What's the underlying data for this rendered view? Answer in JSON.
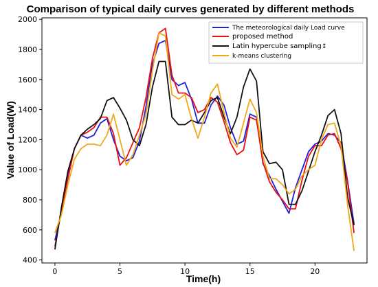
{
  "chart_data": {
    "type": "line",
    "title": "Comparison of typical daily curves generated by different methods",
    "xlabel": "Time(h)",
    "ylabel": "Value of Load(W)",
    "xlim": [
      -1,
      24
    ],
    "ylim": [
      380,
      2010
    ],
    "xticks": [
      0,
      5,
      10,
      15,
      20
    ],
    "yticks": [
      400,
      600,
      800,
      1000,
      1200,
      1400,
      1600,
      1800,
      2000
    ],
    "grid": false,
    "legend_position": "top-right",
    "x": [
      0,
      0.5,
      1,
      1.5,
      2,
      2.5,
      3,
      3.5,
      4,
      4.5,
      5,
      5.5,
      6,
      6.5,
      7,
      7.5,
      8,
      8.5,
      9,
      9.5,
      10,
      10.5,
      11,
      11.5,
      12,
      12.5,
      13,
      13.5,
      14,
      14.5,
      15,
      15.5,
      16,
      16.5,
      17,
      17.5,
      18,
      18.5,
      19,
      19.5,
      20,
      20.5,
      21,
      21.5,
      22,
      22.5,
      23
    ],
    "series": [
      {
        "name": "The meteorological daily Load curve",
        "color": "#1f1fe0",
        "values": [
          530,
          720,
          960,
          1140,
          1230,
          1210,
          1230,
          1310,
          1340,
          1200,
          1090,
          1060,
          1080,
          1190,
          1420,
          1700,
          1840,
          1860,
          1600,
          1560,
          1580,
          1470,
          1310,
          1310,
          1430,
          1490,
          1430,
          1280,
          1170,
          1190,
          1370,
          1350,
          1040,
          960,
          870,
          790,
          710,
          880,
          1000,
          1120,
          1170,
          1190,
          1240,
          1230,
          1180,
          930,
          640
        ]
      },
      {
        "name": "proposed method",
        "color": "#e81010",
        "values": [
          490,
          730,
          940,
          1140,
          1230,
          1250,
          1280,
          1350,
          1350,
          1240,
          1030,
          1080,
          1180,
          1280,
          1480,
          1740,
          1910,
          1940,
          1630,
          1510,
          1510,
          1480,
          1380,
          1400,
          1480,
          1450,
          1320,
          1180,
          1100,
          1130,
          1350,
          1330,
          1050,
          920,
          850,
          800,
          740,
          740,
          930,
          1090,
          1160,
          1160,
          1230,
          1240,
          1140,
          920,
          580
        ]
      },
      {
        "name": "Latin hypercube sampling",
        "color": "#111111",
        "values": [
          470,
          750,
          990,
          1140,
          1230,
          1270,
          1300,
          1340,
          1460,
          1480,
          1410,
          1330,
          1200,
          1160,
          1300,
          1550,
          1720,
          1720,
          1350,
          1300,
          1300,
          1330,
          1310,
          1380,
          1460,
          1480,
          1350,
          1240,
          1350,
          1550,
          1670,
          1590,
          1120,
          1040,
          1050,
          1000,
          770,
          770,
          860,
          990,
          1120,
          1230,
          1360,
          1400,
          1240,
          820,
          630
        ]
      },
      {
        "name": "k-means clustering",
        "color": "#f0a818",
        "values": [
          580,
          700,
          900,
          1070,
          1140,
          1170,
          1170,
          1160,
          1230,
          1370,
          1200,
          1030,
          1100,
          1230,
          1370,
          1660,
          1910,
          1890,
          1500,
          1470,
          1500,
          1340,
          1210,
          1350,
          1510,
          1570,
          1380,
          1210,
          1150,
          1310,
          1470,
          1380,
          1090,
          940,
          940,
          900,
          840,
          870,
          960,
          1000,
          1030,
          1200,
          1300,
          1310,
          1160,
          770,
          460
        ]
      }
    ],
    "legend_marker_text": "↕"
  }
}
